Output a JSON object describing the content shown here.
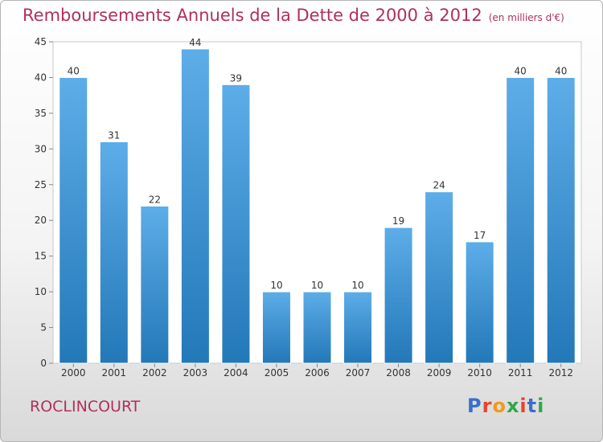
{
  "header": {
    "title": "Remboursements Annuels de la Dette de 2000 à 2012",
    "unit": "(en milliers d'€)"
  },
  "footer": {
    "city": "ROCLINCOURT",
    "logo_text": "Proxiti"
  },
  "colors": {
    "title": "#b0305c",
    "bar_light": "#5dade8",
    "bar_dark": "#2378b8"
  },
  "chart_data": {
    "type": "bar",
    "title": "Remboursements Annuels de la Dette de 2000 à 2012",
    "xlabel": "",
    "ylabel": "",
    "categories": [
      "2000",
      "2001",
      "2002",
      "2003",
      "2004",
      "2005",
      "2006",
      "2007",
      "2008",
      "2009",
      "2010",
      "2011",
      "2012"
    ],
    "values": [
      40,
      31,
      22,
      44,
      39,
      10,
      10,
      10,
      19,
      24,
      17,
      40,
      40
    ],
    "ylim": [
      0,
      45
    ],
    "yticks": [
      0,
      5,
      10,
      15,
      20,
      25,
      30,
      35,
      40,
      45
    ],
    "grid": false,
    "legend": "none"
  }
}
